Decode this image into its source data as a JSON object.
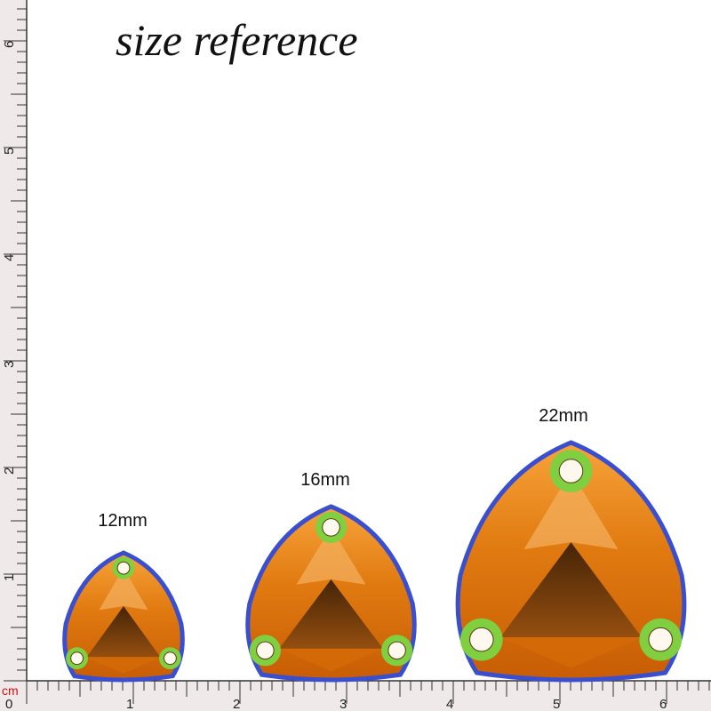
{
  "title": "size reference",
  "labels": [
    "12mm",
    "16mm",
    "22mm"
  ],
  "ruler": {
    "unit": "cm",
    "bottom": [
      "0",
      "1",
      "2",
      "3",
      "4",
      "5",
      "6"
    ],
    "left": [
      "1",
      "2",
      "3",
      "4",
      "5",
      "6"
    ]
  }
}
